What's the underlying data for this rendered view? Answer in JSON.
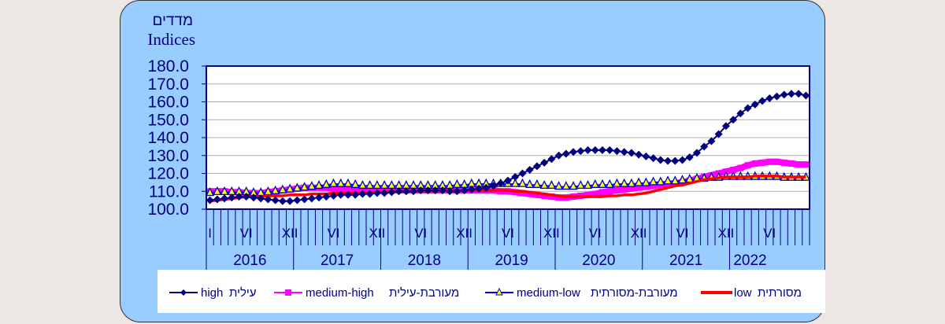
{
  "chart_data": {
    "type": "line",
    "title_he": "מדדים",
    "title_en": "Indices",
    "ylim": [
      100,
      180
    ],
    "yticks": [
      "100.0",
      "110.0",
      "120.0",
      "130.0",
      "140.0",
      "150.0",
      "160.0",
      "170.0",
      "180.0"
    ],
    "grid": true,
    "start": "2016-01",
    "n_months": 83,
    "years": [
      "2016",
      "2017",
      "2018",
      "2019",
      "2020",
      "2021",
      "2022"
    ],
    "month_labels": {
      "0": "I",
      "5": "VI",
      "11": "XII"
    },
    "legend_position": "bottom",
    "series": [
      {
        "name_en": "high",
        "name_he": "עילית",
        "color": "#000080",
        "marker": "diamond",
        "values": [
          105,
          105.5,
          106,
          106.5,
          107,
          107,
          106.5,
          106,
          105.5,
          105,
          104.5,
          104.5,
          105,
          105.5,
          106,
          106.5,
          107,
          107.5,
          108,
          108,
          108,
          108.5,
          108.5,
          109,
          109,
          109.5,
          110,
          110,
          110,
          110.5,
          110.5,
          110.5,
          110.5,
          110,
          110,
          110.5,
          111,
          111.5,
          112,
          113,
          114.5,
          116,
          118,
          120,
          122,
          124,
          126,
          128,
          130,
          131,
          132,
          132.5,
          133,
          133,
          133,
          133,
          132.5,
          132,
          131.5,
          130.5,
          129.5,
          128.5,
          127.5,
          127,
          127,
          127.5,
          129,
          131.5,
          135,
          138,
          142,
          146.5,
          150,
          153.5,
          156.5,
          158.5,
          160.5,
          162,
          163,
          164,
          164.5,
          164.5,
          163.5
        ]
      },
      {
        "name_en": "medium-high",
        "name_he": "מעורבת-עילית",
        "color": "#ff00ff",
        "marker": "square",
        "values": [
          110,
          110,
          110,
          109.5,
          109.5,
          109,
          109,
          109,
          109.5,
          110,
          110.5,
          111,
          111.5,
          112,
          112,
          112,
          112,
          111.5,
          111.5,
          111,
          111,
          110.5,
          110.5,
          110.5,
          110.5,
          110.5,
          110.5,
          110.5,
          110.5,
          110.5,
          110.5,
          110.5,
          110.5,
          110.5,
          110.5,
          110.5,
          110.5,
          110.5,
          110.5,
          110.5,
          110,
          110,
          109.5,
          109,
          108.5,
          108,
          107.5,
          107,
          106.5,
          106.5,
          107,
          107.5,
          108,
          108.5,
          109.5,
          110,
          110.5,
          111,
          111.5,
          112,
          112.5,
          113,
          113.5,
          114,
          114.5,
          115,
          116,
          117,
          118,
          119,
          120,
          121,
          122,
          123,
          124.5,
          125.5,
          126,
          126.5,
          126.5,
          126,
          125.5,
          125,
          125
        ]
      },
      {
        "name_en": "medium-low",
        "name_he": "מעורבת-מסורתית",
        "color": "#0000ff",
        "marker": "triangle",
        "values": [
          109,
          109.5,
          109.5,
          109.5,
          109.5,
          109.5,
          109,
          109,
          109.5,
          110,
          110.5,
          111,
          111.5,
          112,
          112.5,
          113,
          113.5,
          114,
          114,
          114,
          113.5,
          113,
          113,
          113,
          113,
          113,
          113,
          113,
          113,
          113,
          113,
          113,
          113,
          113,
          113.5,
          113.5,
          114,
          114,
          114,
          114,
          114,
          114,
          114,
          114,
          113.5,
          113.5,
          113,
          113,
          112.5,
          112.5,
          112.5,
          113,
          113,
          113.5,
          113.5,
          113.5,
          114,
          114,
          114,
          114.5,
          114.5,
          115,
          115,
          115.5,
          115.5,
          116,
          116.5,
          117,
          117,
          117.5,
          117.5,
          118,
          118,
          118,
          118,
          118,
          118,
          118,
          118,
          117.5,
          117.5,
          117.5,
          117.5
        ]
      },
      {
        "name_en": "low",
        "name_he": "מסורתית",
        "color": "#ff0000",
        "marker": "none",
        "values": [
          104.5,
          105,
          105.5,
          106,
          106.5,
          107,
          107,
          107,
          107.5,
          107.5,
          107.5,
          108,
          108,
          108,
          108.5,
          108.5,
          108.5,
          109,
          109,
          109,
          109,
          109,
          109,
          109.5,
          109.5,
          110,
          110,
          110,
          110,
          110,
          110,
          110,
          110.5,
          110.5,
          110.5,
          110.5,
          110.5,
          110.5,
          110.5,
          110.5,
          110.5,
          110.5,
          110,
          110,
          109.5,
          109,
          108.5,
          108,
          107.5,
          107,
          107,
          107,
          107,
          107,
          107,
          107.5,
          107.5,
          108,
          108,
          108.5,
          109,
          110,
          111,
          112,
          113,
          113.5,
          114.5,
          115.5,
          116.5,
          117,
          117.5,
          118,
          118,
          118,
          118,
          118.5,
          118.5,
          118.5,
          118.5,
          118,
          118,
          118,
          118
        ]
      }
    ]
  }
}
